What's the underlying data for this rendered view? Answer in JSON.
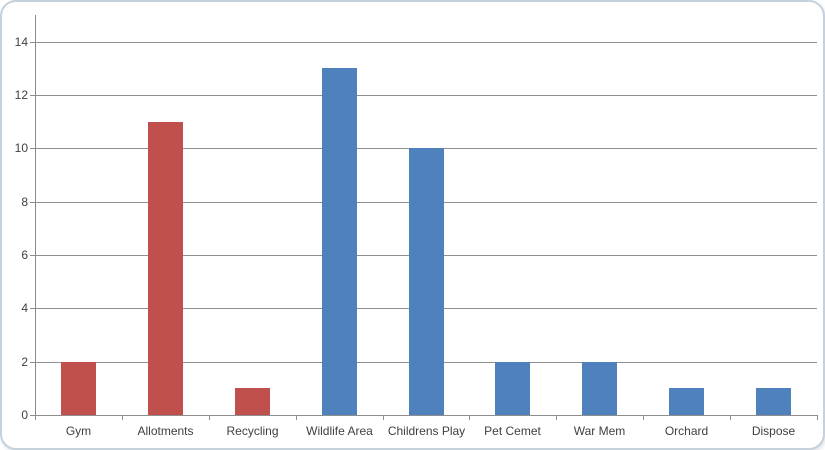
{
  "chart_data": {
    "type": "bar",
    "title": "",
    "xlabel": "",
    "ylabel": "",
    "categories": [
      "Gym",
      "Allotments",
      "Recycling",
      "Wildlife Area",
      "Childrens Play",
      "Pet Cemet",
      "War Mem",
      "Orchard",
      "Dispose"
    ],
    "values": [
      2,
      11,
      1,
      13,
      10,
      2,
      2,
      1,
      1
    ],
    "bar_colors": [
      "#C0504D",
      "#C0504D",
      "#C0504D",
      "#4F81BD",
      "#4F81BD",
      "#4F81BD",
      "#4F81BD",
      "#4F81BD",
      "#4F81BD"
    ],
    "y_ticks": [
      "0",
      "2",
      "4",
      "6",
      "8",
      "10",
      "12",
      "14"
    ],
    "ylim": [
      0,
      15
    ],
    "grid": true,
    "legend": false
  },
  "colors": {
    "series_red": "#C0504D",
    "series_blue": "#4F81BD",
    "gridline": "#8e8e8e",
    "axis": "#8e8e8e",
    "tick_label": "#404040",
    "frame_border": "#c5d1db"
  }
}
